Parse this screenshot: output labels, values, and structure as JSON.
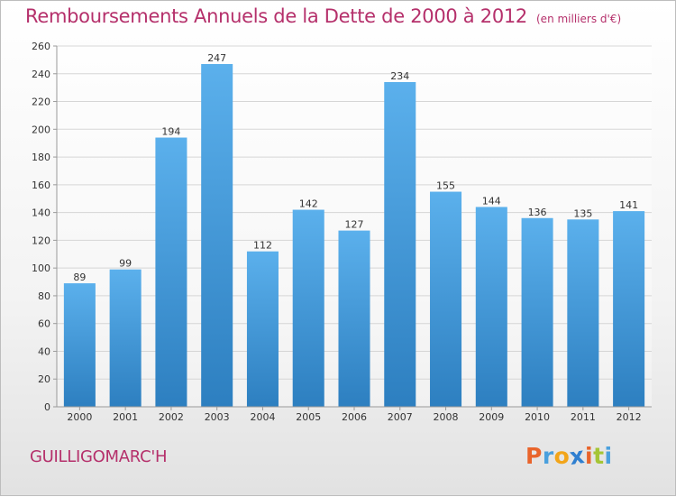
{
  "title": "Remboursements Annuels de la Dette de 2000 à 2012",
  "subtitle": "(en milliers d'€)",
  "commune": "GUILLIGOMARC'H",
  "logo": {
    "text": "Proxiti",
    "letter_colors": [
      "#e9642b",
      "#4aa0dd",
      "#f2a51a",
      "#2f7fd0",
      "#e9642b",
      "#a5c535",
      "#4aa0dd"
    ]
  },
  "colors": {
    "bar_top": "#5bb0ec",
    "bar_bottom": "#2d7fc0",
    "title": "#b5306b",
    "grid": "#d6d6d6"
  },
  "chart_data": {
    "type": "bar",
    "title": "Remboursements Annuels de la Dette de 2000 à 2012",
    "xlabel": "",
    "ylabel": "",
    "categories": [
      "2000",
      "2001",
      "2002",
      "2003",
      "2004",
      "2005",
      "2006",
      "2007",
      "2008",
      "2009",
      "2010",
      "2011",
      "2012"
    ],
    "values": [
      89,
      99,
      194,
      247,
      112,
      142,
      127,
      234,
      155,
      144,
      136,
      135,
      141
    ],
    "ylim": [
      0,
      260
    ],
    "yticks": [
      0,
      20,
      40,
      60,
      80,
      100,
      120,
      140,
      160,
      180,
      200,
      220,
      240,
      260
    ],
    "grid": true,
    "legend": "none"
  }
}
